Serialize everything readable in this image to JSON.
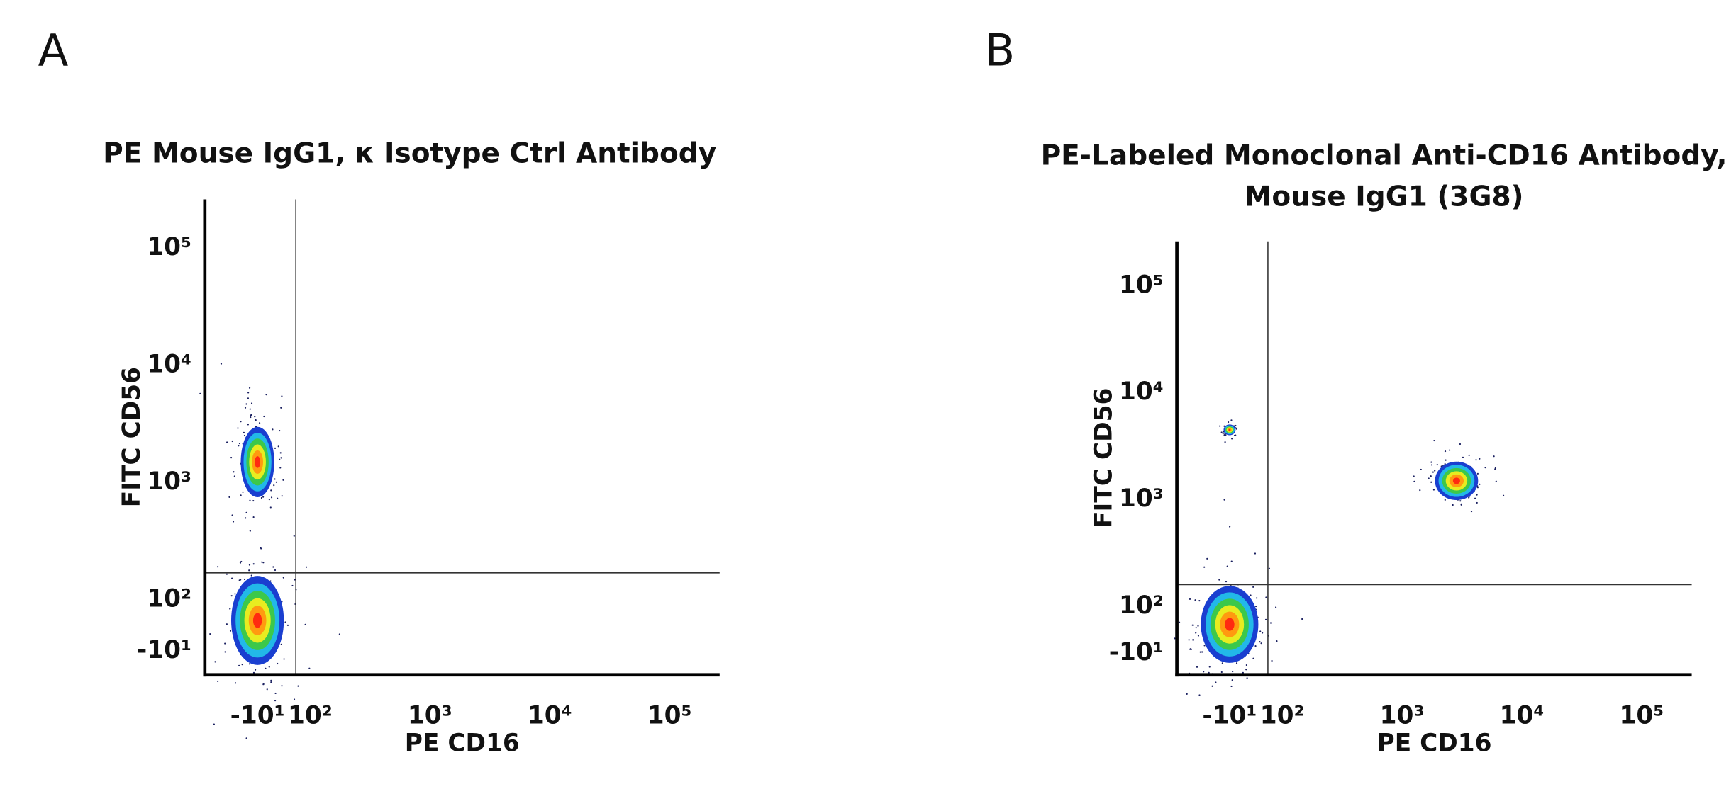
{
  "chart_data": [
    {
      "type": "density",
      "panel_label": "A",
      "title": [
        "PE Mouse IgG1, κ Isotype Ctrl Antibody"
      ],
      "x_label": "PE CD16",
      "y_label": "FITC CD56",
      "xlim": [
        -120,
        262144
      ],
      "ylim": [
        -60,
        262144
      ],
      "xticks": [
        {
          "value": -10,
          "label": "-10¹"
        },
        {
          "value": 100,
          "label": "10²"
        },
        {
          "value": 1000,
          "label": "10³"
        },
        {
          "value": 10000,
          "label": "10⁴"
        },
        {
          "value": 100000,
          "label": "10⁵"
        }
      ],
      "yticks": [
        {
          "value": -10,
          "label": "-10¹"
        },
        {
          "value": 100,
          "label": "10²"
        },
        {
          "value": 1000,
          "label": "10³"
        },
        {
          "value": 10000,
          "label": "10⁴"
        },
        {
          "value": 100000,
          "label": "10⁵"
        }
      ],
      "gate": {
        "x": 70,
        "y": 170
      },
      "density_colors": [
        "#1a3fd0",
        "#22b8e8",
        "#3cc84a",
        "#e8ec20",
        "#ff9a10",
        "#ff2a10"
      ],
      "clusters": [
        {
          "x": -10,
          "y": 56,
          "xspread": 0.22,
          "yspread": 0.38
        },
        {
          "x": -10,
          "y": 1500,
          "xspread": 0.14,
          "yspread": 0.3
        }
      ]
    },
    {
      "type": "density",
      "panel_label": "B",
      "title": [
        "PE-Labeled Monoclonal Anti-CD16 Antibody,",
        "Mouse IgG1 (3G8)"
      ],
      "x_label": "PE CD16",
      "y_label": "FITC CD56",
      "xlim": [
        -120,
        262144
      ],
      "ylim": [
        -60,
        262144
      ],
      "xticks": [
        {
          "value": -10,
          "label": "-10¹"
        },
        {
          "value": 100,
          "label": "10²"
        },
        {
          "value": 1000,
          "label": "10³"
        },
        {
          "value": 10000,
          "label": "10⁴"
        },
        {
          "value": 100000,
          "label": "10⁵"
        }
      ],
      "yticks": [
        {
          "value": -10,
          "label": "-10¹"
        },
        {
          "value": 100,
          "label": "10²"
        },
        {
          "value": 1000,
          "label": "10³"
        },
        {
          "value": 10000,
          "label": "10⁴"
        },
        {
          "value": 100000,
          "label": "10⁵"
        }
      ],
      "gate": {
        "x": 70,
        "y": 160
      },
      "density_colors": [
        "#1a3fd0",
        "#22b8e8",
        "#3cc84a",
        "#e8ec20",
        "#ff9a10",
        "#ff2a10"
      ],
      "clusters": [
        {
          "x": -10,
          "y": 58,
          "xspread": 0.24,
          "yspread": 0.36
        },
        {
          "x": 2850,
          "y": 1500,
          "xspread": 0.18,
          "yspread": 0.18
        },
        {
          "x": -10,
          "y": 4500,
          "xspread": 0.05,
          "yspread": 0.05
        }
      ]
    }
  ]
}
